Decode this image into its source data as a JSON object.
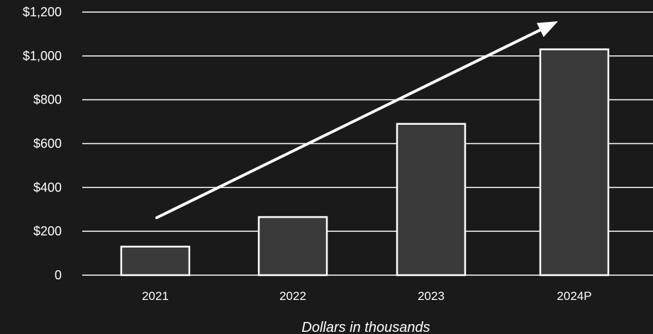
{
  "chart_data": {
    "type": "bar",
    "categories": [
      "2021",
      "2022",
      "2023",
      "2024P"
    ],
    "values": [
      130,
      265,
      690,
      1030
    ],
    "title": "",
    "xlabel": "Dollars in thousands",
    "ylabel": "",
    "ylim": [
      0,
      1200
    ],
    "yticks": [
      0,
      200,
      400,
      600,
      800,
      1000,
      1200
    ],
    "ytick_labels": [
      "0",
      "$200",
      "$400",
      "$600",
      "$800",
      "$1,000",
      "$1,200"
    ],
    "grid": true,
    "annotations": [
      {
        "type": "trend-arrow",
        "direction": "up"
      }
    ],
    "colors": {
      "background": "#1a1a1a",
      "bar_fill": "#3a3a3a",
      "bar_stroke": "#ffffff",
      "grid": "#ffffff",
      "text": "#ffffff",
      "arrow": "#ffffff"
    }
  }
}
